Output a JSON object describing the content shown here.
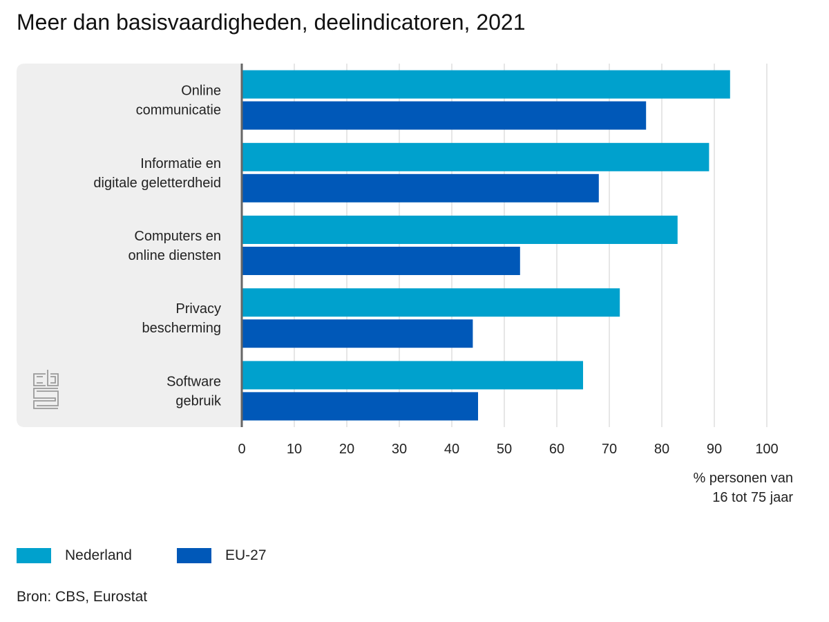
{
  "title": "Meer dan basisvaardigheden, deelindicatoren, 2021",
  "source": "Bron: CBS, Eurostat",
  "colors": {
    "nederland": "#00a1cd",
    "eu27": "#0058b8",
    "panel": "#efefef",
    "grid": "#cccccc",
    "axis": "#666666"
  },
  "logo_icon": "cbs-logo-icon",
  "chart_data": {
    "type": "bar",
    "orientation": "horizontal",
    "title": "Meer dan basisvaardigheden, deelindicatoren, 2021",
    "categories": [
      "Online communicatie",
      "Informatie en digitale geletterdheid",
      "Computers en online diensten",
      "Privacy bescherming",
      "Software gebruik"
    ],
    "category_lines": [
      [
        "Online",
        "communicatie"
      ],
      [
        "Informatie en",
        "digitale geletterdheid"
      ],
      [
        "Computers en",
        "online diensten"
      ],
      [
        "Privacy",
        "bescherming"
      ],
      [
        "Software",
        "gebruik"
      ]
    ],
    "series": [
      {
        "name": "Nederland",
        "values": [
          93,
          89,
          83,
          72,
          65
        ]
      },
      {
        "name": "EU-27",
        "values": [
          77,
          68,
          53,
          44,
          45
        ]
      }
    ],
    "xlim": [
      0,
      100
    ],
    "xticks": [
      0,
      10,
      20,
      30,
      40,
      50,
      60,
      70,
      80,
      90,
      100
    ],
    "xlabel": [
      "% personen van",
      "16 tot 75 jaar"
    ],
    "grid": true,
    "legend": "bottom-left"
  }
}
